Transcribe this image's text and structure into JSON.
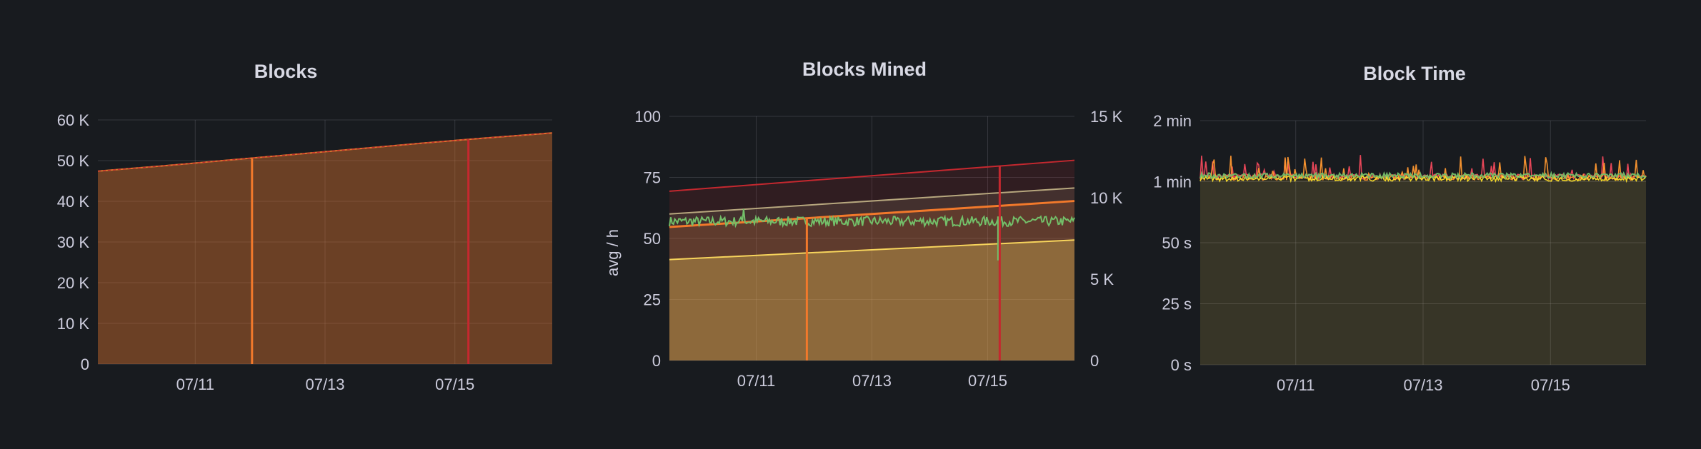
{
  "chart_data": [
    {
      "type": "area",
      "title": "Blocks",
      "x_ticks": [
        "07/11",
        "07/13",
        "07/15"
      ],
      "ylim": [
        0,
        60000
      ],
      "y_ticks": [
        "0",
        "10 K",
        "20 K",
        "30 K",
        "40 K",
        "50 K",
        "60 K"
      ],
      "grid": true,
      "series": [
        {
          "values": [
            47400,
            48700,
            50100,
            51500,
            52900,
            54300,
            55600,
            56800
          ],
          "color": "#e0752d"
        }
      ],
      "markers": [
        {
          "x": "07/11 21:00",
          "color": "#f2792b"
        },
        {
          "x": "07/15 05:00",
          "color": "#c4282f"
        }
      ]
    },
    {
      "type": "line",
      "title": "Blocks Mined",
      "ylabel": "avg / h",
      "x_ticks": [
        "07/11",
        "07/13",
        "07/15"
      ],
      "ylim": [
        0,
        100
      ],
      "y_ticks": [
        "0",
        "25",
        "50",
        "75",
        "100"
      ],
      "y2lim": [
        0,
        15000
      ],
      "y2_ticks": [
        "0",
        "5 K",
        "10 K",
        "15 K"
      ],
      "grid": true,
      "series": [
        {
          "axis": "right",
          "start": 10400,
          "end": 12300,
          "color": "#c4282f"
        },
        {
          "axis": "right",
          "start": 9000,
          "end": 10600,
          "color": "#b7a77e"
        },
        {
          "axis": "right",
          "start": 8200,
          "end": 9800,
          "color": "#f2792b"
        },
        {
          "axis": "right",
          "start": 6200,
          "end": 7400,
          "color": "#f7d45c"
        },
        {
          "axis": "left",
          "mean": 57,
          "color": "#73bf69"
        }
      ],
      "markers": [
        {
          "x": "07/11 21:00",
          "color": "#f2792b"
        },
        {
          "x": "07/15 05:00",
          "color": "#c4282f"
        }
      ]
    },
    {
      "type": "line",
      "title": "Block Time",
      "x_ticks": [
        "07/11",
        "07/13",
        "07/15"
      ],
      "ylim": [
        0,
        120
      ],
      "y_ticks": [
        "0 s",
        "25 s",
        "50 s",
        "1 min",
        "2 min"
      ],
      "grid": true,
      "series": [
        {
          "mean_seconds": 65,
          "color": "#f2495c"
        },
        {
          "mean_seconds": 64,
          "color": "#ff9830"
        },
        {
          "mean_seconds": 63,
          "color": "#fade2a"
        },
        {
          "mean_seconds": 66,
          "color": "#73bf69"
        }
      ]
    }
  ]
}
